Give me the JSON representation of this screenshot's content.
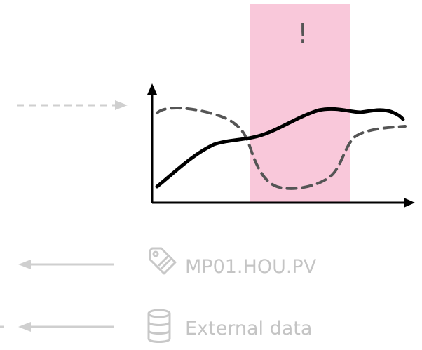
{
  "alert": {
    "mark": "!"
  },
  "sources": [
    {
      "label": "MP01.HOU.PV",
      "icon": "tag-icon"
    },
    {
      "label": "External data",
      "icon": "database-icon"
    }
  ],
  "colors": {
    "highlight": "#f9c8da",
    "solid_series": "#000000",
    "dashed_series": "#555555",
    "faded": "#c8c8c8"
  }
}
